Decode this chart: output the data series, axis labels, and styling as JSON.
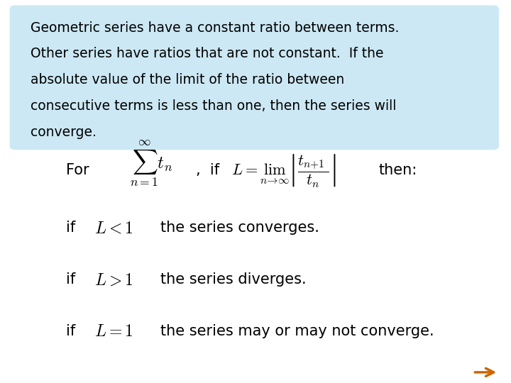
{
  "background_color": "#ffffff",
  "box_color": "#cce8f4",
  "box_text_lines": [
    "Geometric series have a constant ratio between terms.",
    "Other series have ratios that are not constant.  If the",
    "absolute value of the limit of the ratio between",
    "consecutive terms is less than one, then the series will",
    "converge."
  ],
  "arrow_color": "#cc6600",
  "figsize": [
    7.2,
    5.4
  ],
  "dpi": 100
}
